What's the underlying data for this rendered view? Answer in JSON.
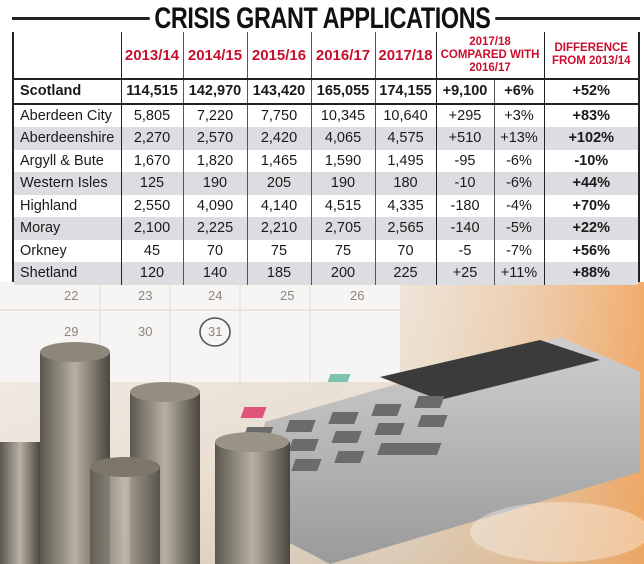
{
  "title": "CRISIS GRANT APPLICATIONS",
  "headers": {
    "region": "",
    "years": [
      "2013/14",
      "2014/15",
      "2015/16",
      "2016/17",
      "2017/18"
    ],
    "compared": "2017/18 COMPARED WITH 2016/17",
    "difference": "DIFFERENCE FROM 2013/14"
  },
  "rows": [
    {
      "region": "Scotland",
      "values": [
        "114,515",
        "142,970",
        "143,420",
        "165,055",
        "174,155"
      ],
      "change_abs": "+9,100",
      "change_pct": "+6%",
      "diff": "+52%"
    },
    {
      "region": "Aberdeen City",
      "values": [
        "5,805",
        "7,220",
        "7,750",
        "10,345",
        "10,640"
      ],
      "change_abs": "+295",
      "change_pct": "+3%",
      "diff": "+83%"
    },
    {
      "region": "Aberdeenshire",
      "values": [
        "2,270",
        "2,570",
        "2,420",
        "4,065",
        "4,575"
      ],
      "change_abs": "+510",
      "change_pct": "+13%",
      "diff": "+102%"
    },
    {
      "region": "Argyll & Bute",
      "values": [
        "1,670",
        "1,820",
        "1,465",
        "1,590",
        "1,495"
      ],
      "change_abs": "-95",
      "change_pct": "-6%",
      "diff": "-10%"
    },
    {
      "region": "Western Isles",
      "values": [
        "125",
        "190",
        "205",
        "190",
        "180"
      ],
      "change_abs": "-10",
      "change_pct": "-6%",
      "diff": "+44%"
    },
    {
      "region": "Highland",
      "values": [
        "2,550",
        "4,090",
        "4,140",
        "4,515",
        "4,335"
      ],
      "change_abs": "-180",
      "change_pct": "-4%",
      "diff": "+70%"
    },
    {
      "region": "Moray",
      "values": [
        "2,100",
        "2,225",
        "2,210",
        "2,705",
        "2,565"
      ],
      "change_abs": "-140",
      "change_pct": "-5%",
      "diff": "+22%"
    },
    {
      "region": "Orkney",
      "values": [
        "45",
        "70",
        "75",
        "75",
        "70"
      ],
      "change_abs": "-5",
      "change_pct": "-7%",
      "diff": "+56%"
    },
    {
      "region": "Shetland",
      "values": [
        "120",
        "140",
        "185",
        "200",
        "225"
      ],
      "change_abs": "+25",
      "change_pct": "+11%",
      "diff": "+88%"
    }
  ],
  "calendar_numbers": [
    "22",
    "23",
    "24",
    "25",
    "26",
    "29",
    "30",
    "31"
  ],
  "colors": {
    "header_red": "#c8102e",
    "shade_grey": "#dcdde0",
    "rule": "#222222"
  }
}
